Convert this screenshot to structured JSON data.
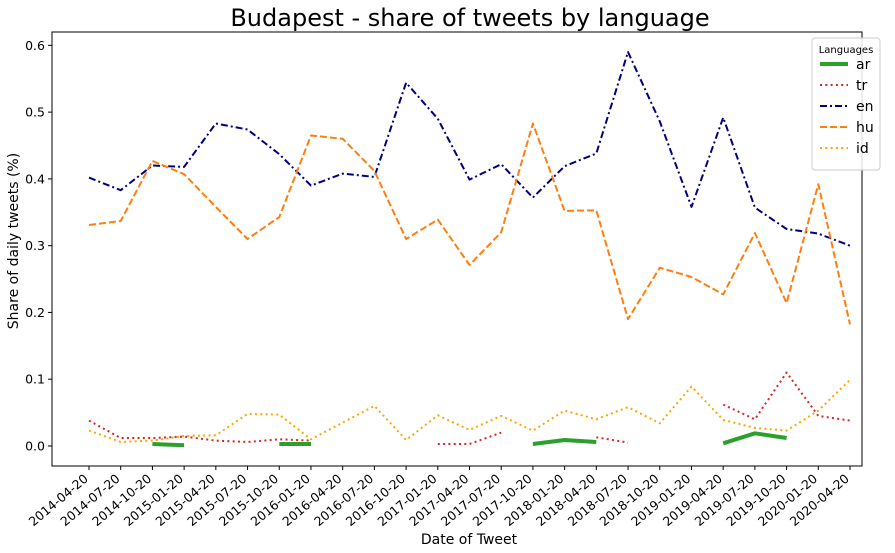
{
  "chart_data": {
    "type": "line",
    "title": "Budapest - share of tweets by language",
    "xlabel": "Date of Tweet",
    "ylabel": "Share of daily tweets (%)",
    "ylim": [
      -0.03,
      0.62
    ],
    "yticks": [
      0.0,
      0.1,
      0.2,
      0.3,
      0.4,
      0.5,
      0.6
    ],
    "grid": false,
    "legend": {
      "title": "Languages",
      "placement": "top-right"
    },
    "x": [
      "2014-04-20",
      "2014-07-20",
      "2014-10-20",
      "2015-01-20",
      "2015-04-20",
      "2015-07-20",
      "2015-10-20",
      "2016-01-20",
      "2016-04-20",
      "2016-07-20",
      "2016-10-20",
      "2017-01-20",
      "2017-04-20",
      "2017-07-20",
      "2017-10-20",
      "2018-01-20",
      "2018-04-20",
      "2018-07-20",
      "2018-10-20",
      "2019-01-20",
      "2019-04-20",
      "2019-07-20",
      "2019-10-20",
      "2020-01-20",
      "2020-04-20"
    ],
    "series": [
      {
        "name": "ar",
        "color": "#2ca02c",
        "style": "solid",
        "width": 4,
        "values": [
          null,
          null,
          0.003,
          0.001,
          null,
          null,
          0.003,
          0.003,
          null,
          null,
          null,
          null,
          null,
          null,
          0.003,
          0.009,
          0.006,
          null,
          null,
          null,
          0.004,
          0.019,
          0.012,
          null,
          null
        ]
      },
      {
        "name": "tr",
        "color": "#d62728",
        "style": "dotted",
        "width": 2,
        "values": [
          0.038,
          0.012,
          0.012,
          0.014,
          0.008,
          0.006,
          0.01,
          0.008,
          null,
          null,
          null,
          0.003,
          0.003,
          0.02,
          null,
          null,
          0.013,
          0.005,
          null,
          null,
          0.062,
          0.04,
          0.11,
          0.045,
          0.038
        ]
      },
      {
        "name": "en",
        "color": "#000080",
        "style": "dashdot",
        "width": 2,
        "values": [
          0.402,
          0.383,
          0.42,
          0.418,
          0.483,
          0.474,
          0.437,
          0.39,
          0.408,
          0.403,
          0.544,
          0.49,
          0.399,
          0.422,
          0.372,
          0.419,
          0.438,
          0.59,
          0.486,
          0.358,
          0.492,
          0.357,
          0.325,
          0.318,
          0.3
        ]
      },
      {
        "name": "hu",
        "color": "#ff7f0e",
        "style": "dashed",
        "width": 2,
        "values": [
          0.331,
          0.337,
          0.427,
          0.407,
          0.358,
          0.31,
          0.343,
          0.465,
          0.46,
          0.412,
          0.31,
          0.339,
          0.271,
          0.32,
          0.483,
          0.352,
          0.353,
          0.19,
          0.267,
          0.253,
          0.227,
          0.319,
          0.214,
          0.392,
          0.182
        ]
      },
      {
        "name": "id",
        "color": "#ffa500",
        "style": "dotted",
        "width": 2,
        "values": [
          0.023,
          0.006,
          0.008,
          0.015,
          0.016,
          0.048,
          0.047,
          0.01,
          0.035,
          0.06,
          0.009,
          0.046,
          0.024,
          0.045,
          0.023,
          0.053,
          0.04,
          0.058,
          0.034,
          0.089,
          0.039,
          0.027,
          0.023,
          0.053,
          0.099
        ]
      }
    ]
  }
}
